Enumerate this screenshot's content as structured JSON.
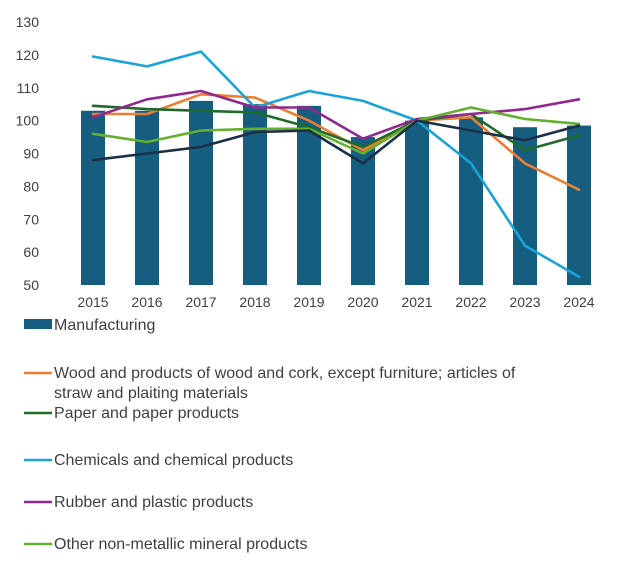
{
  "chart_data": {
    "type": "bar",
    "title": "",
    "xlabel": "",
    "ylabel": "",
    "ylim": [
      50,
      130
    ],
    "yticks": [
      50,
      60,
      70,
      80,
      90,
      100,
      110,
      120,
      130
    ],
    "grid": false,
    "legend_position": "bottom",
    "categories": [
      "2015",
      "2016",
      "2017",
      "2018",
      "2019",
      "2020",
      "2021",
      "2022",
      "2023",
      "2024"
    ],
    "series": [
      {
        "name": "Manufacturing",
        "type": "bar",
        "color": "#155e80",
        "values": [
          103,
          103,
          106,
          105,
          104.5,
          95,
          100,
          101,
          98,
          98.5
        ]
      },
      {
        "name": "Wood and products of wood and cork, except furniture;  articles of straw and plaiting materials",
        "legend_lines": [
          "Wood and products of wood and cork, except furniture;  articles of",
          "straw and plaiting materials"
        ],
        "type": "line",
        "color": "#ed7d31",
        "values": [
          102,
          102,
          108,
          107,
          100,
          91,
          100,
          101,
          87,
          79
        ]
      },
      {
        "name": "Paper and paper products",
        "type": "line",
        "color": "#1e6b2a",
        "values": [
          104.5,
          103.5,
          103,
          102.5,
          98,
          92,
          100,
          102,
          91,
          95.5
        ]
      },
      {
        "name": "Chemicals and chemical products",
        "type": "line",
        "color": "#1aa3d9",
        "values": [
          119.5,
          116.5,
          121,
          104,
          109,
          106,
          100,
          87,
          62,
          52.5
        ]
      },
      {
        "name": "Rubber and plastic products",
        "type": "line",
        "color": "#902890",
        "values": [
          101,
          106.5,
          109,
          104,
          104,
          94.5,
          100.5,
          102,
          103.5,
          106.5
        ]
      },
      {
        "name": "Other non-metallic mineral products",
        "type": "line",
        "color": "#62b02b",
        "values": [
          96,
          93.5,
          97,
          97.5,
          97.5,
          90,
          100,
          104,
          100.5,
          99
        ]
      },
      {
        "name": "",
        "type": "line",
        "color": "#1c2f47",
        "values": [
          88,
          90,
          92,
          96.5,
          97,
          87,
          100,
          97,
          94,
          98.5
        ]
      }
    ]
  }
}
